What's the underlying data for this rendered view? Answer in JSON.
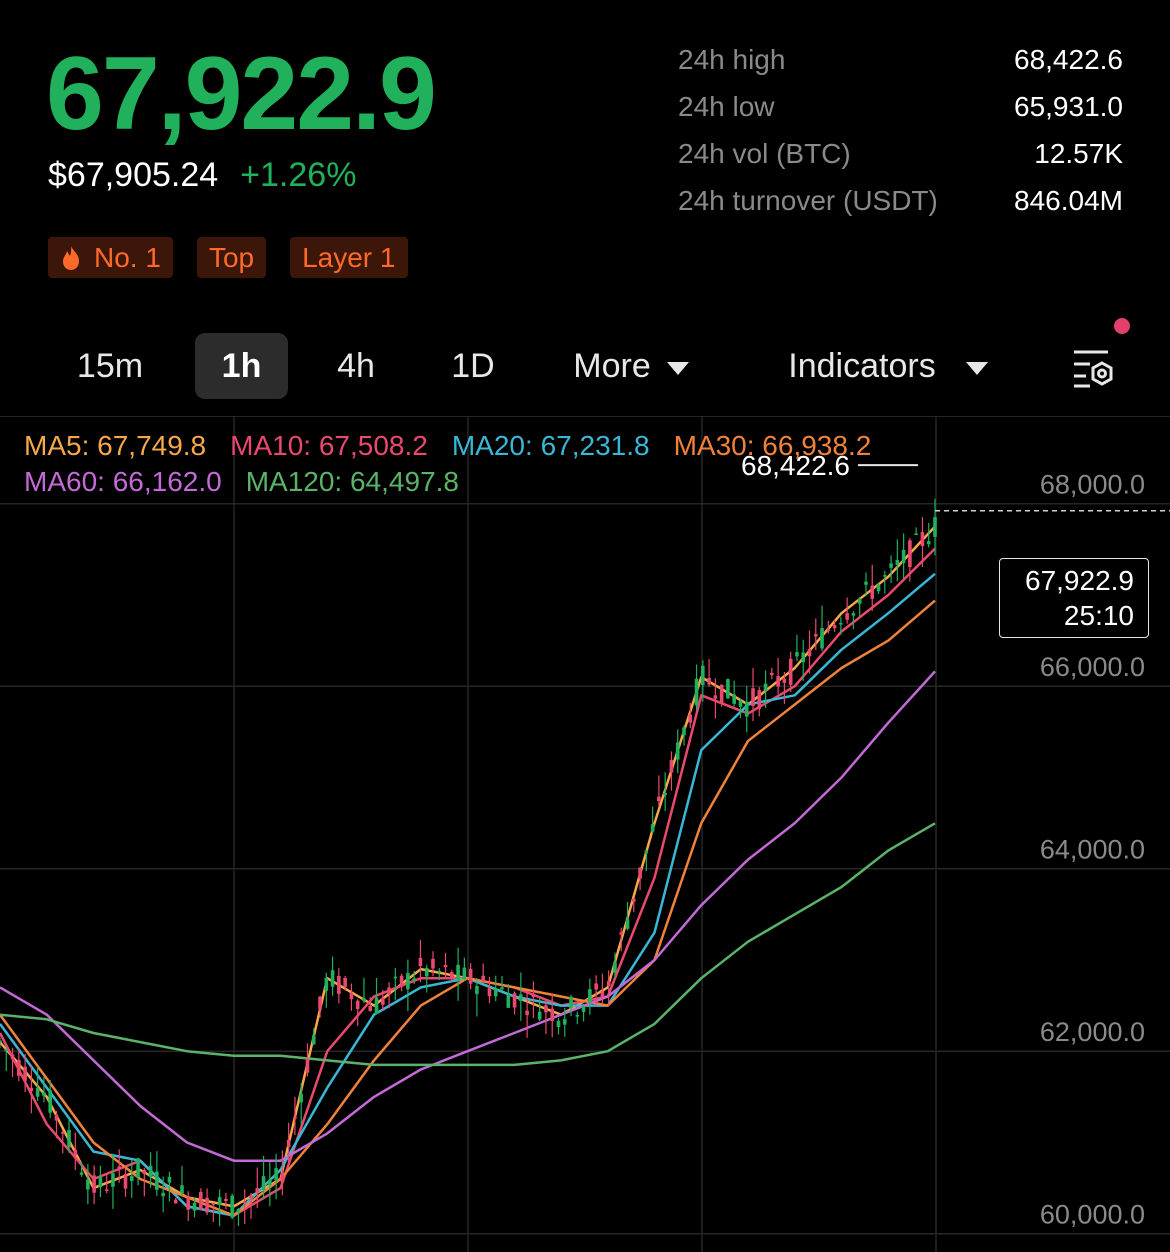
{
  "header": {
    "last_price": "67,922.9",
    "usd_price": "$67,905.24",
    "change_pct": "+1.26%",
    "tags": [
      "No. 1",
      "Top",
      "Layer 1"
    ]
  },
  "stats": [
    {
      "label": "24h high",
      "value": "68,422.6"
    },
    {
      "label": "24h low",
      "value": "65,931.0"
    },
    {
      "label": "24h vol (BTC)",
      "value": "12.57K"
    },
    {
      "label": "24h turnover (USDT)",
      "value": "846.04M"
    }
  ],
  "toolbar": {
    "intervals": [
      "15m",
      "1h",
      "4h",
      "1D"
    ],
    "active_interval": "1h",
    "more_label": "More",
    "indicators_label": "Indicators",
    "settings_icon": "chart-settings-icon",
    "notification_dot_color": "#e0406a"
  },
  "moving_averages": [
    {
      "label": "MA5:",
      "value": "67,749.8",
      "color": "#f7a84a"
    },
    {
      "label": "MA10:",
      "value": "67,508.2",
      "color": "#e9496f"
    },
    {
      "label": "MA20:",
      "value": "67,231.8",
      "color": "#3ab7d6"
    },
    {
      "label": "MA30:",
      "value": "66,938.2",
      "color": "#f0823a"
    },
    {
      "label": "MA60:",
      "value": "66,162.0",
      "color": "#c36ad6"
    },
    {
      "label": "MA120:",
      "value": "64,497.8",
      "color": "#5bb36a"
    }
  ],
  "chart_data": {
    "type": "line",
    "y_ticks": [
      "68,000.0",
      "66,000.0",
      "64,000.0",
      "62,000.0",
      "60,000.0"
    ],
    "ylim": [
      59800,
      68950
    ],
    "grid": true,
    "high_marker": "68,422.6",
    "current_price_label": "67,922.9",
    "countdown_label": "25:10",
    "candle_colors": {
      "up": "#21b05b",
      "down": "#e9496f"
    },
    "x": [
      0,
      10,
      20,
      30,
      40,
      50,
      60,
      70,
      80,
      90,
      100,
      110,
      120,
      130,
      140,
      150,
      160,
      170,
      180,
      190,
      200
    ],
    "series": [
      {
        "name": "MA5",
        "color": "#f7a84a",
        "values": [
          62100,
          61500,
          60500,
          60700,
          60400,
          60300,
          60600,
          62800,
          62500,
          62900,
          62800,
          62600,
          62400,
          62700,
          64500,
          66100,
          65800,
          66200,
          66800,
          67200,
          67750
        ]
      },
      {
        "name": "MA10",
        "color": "#e9496f",
        "values": [
          62200,
          61200,
          60600,
          60800,
          60300,
          60200,
          60500,
          62000,
          62600,
          62800,
          62800,
          62700,
          62500,
          62600,
          63900,
          65900,
          65700,
          66000,
          66600,
          67000,
          67508
        ]
      },
      {
        "name": "MA20",
        "color": "#3ab7d6",
        "values": [
          62300,
          61600,
          60900,
          60800,
          60300,
          60200,
          60700,
          61600,
          62400,
          62700,
          62800,
          62600,
          62500,
          62500,
          63300,
          65300,
          65800,
          65900,
          66400,
          66800,
          67232
        ]
      },
      {
        "name": "MA30",
        "color": "#f0823a",
        "values": [
          62400,
          61700,
          61000,
          60600,
          60400,
          60200,
          60600,
          61200,
          61900,
          62500,
          62800,
          62700,
          62600,
          62500,
          63000,
          64500,
          65400,
          65800,
          66200,
          66500,
          66938
        ]
      },
      {
        "name": "MA60",
        "color": "#c36ad6",
        "values": [
          62700,
          62400,
          61900,
          61400,
          61000,
          60800,
          60800,
          61100,
          61500,
          61800,
          62000,
          62200,
          62400,
          62600,
          63000,
          63600,
          64100,
          64500,
          65000,
          65600,
          66162
        ]
      },
      {
        "name": "MA120",
        "color": "#5bb36a",
        "values": [
          62400,
          62350,
          62200,
          62100,
          62000,
          61950,
          61950,
          61900,
          61850,
          61850,
          61850,
          61850,
          61900,
          62000,
          62300,
          62800,
          63200,
          63500,
          63800,
          64200,
          64498
        ]
      }
    ]
  }
}
